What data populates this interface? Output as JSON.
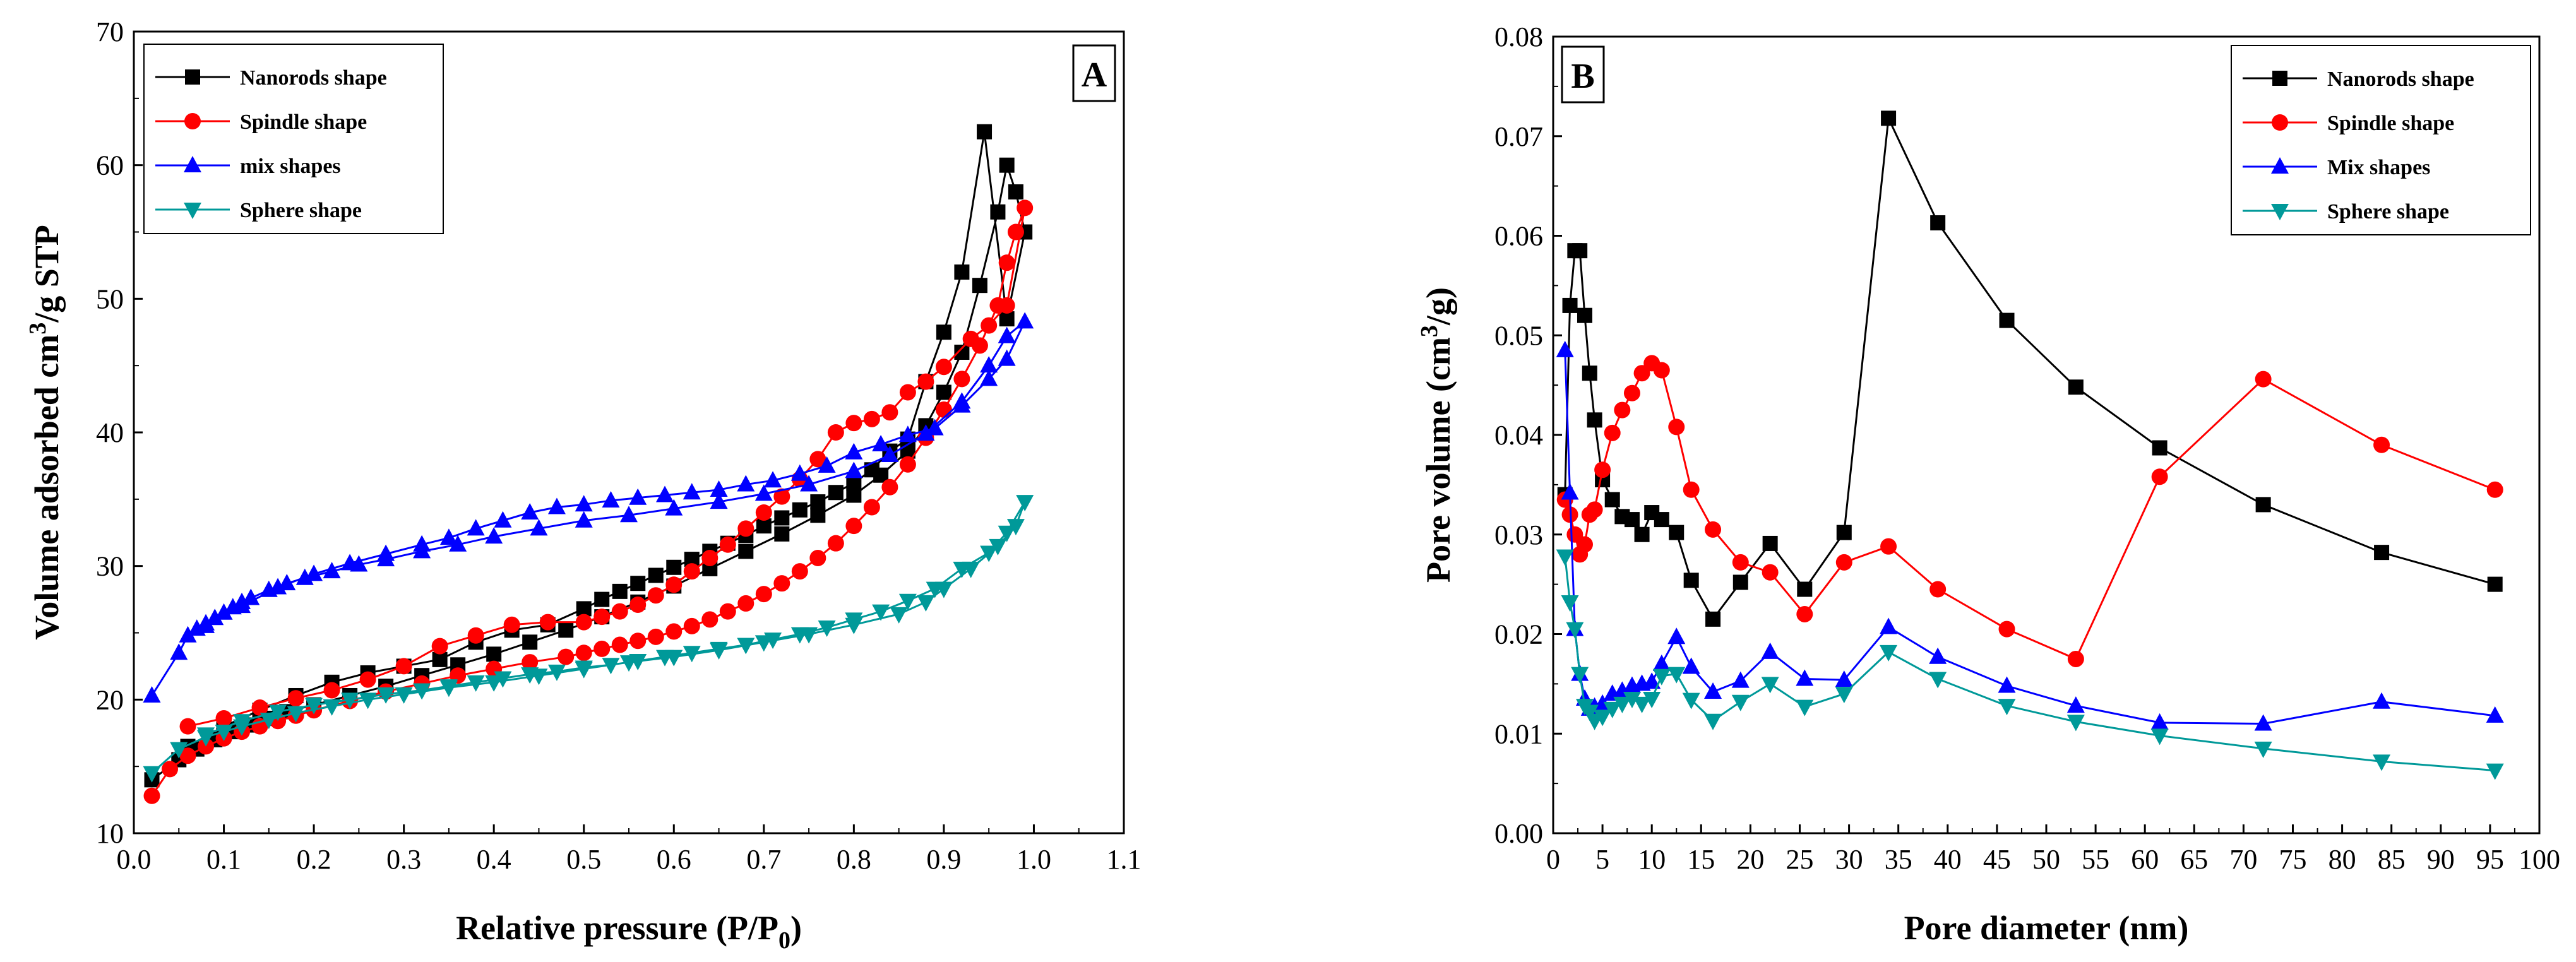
{
  "chart_data": [
    {
      "type": "line",
      "panel_label": "A",
      "title": "",
      "xlabel": "Relative pressure (P/P",
      "xlabel_sub": "0",
      "xlabel_end": ")",
      "ylabel": "Volume adsorbed cm",
      "ylabel_sup": "3",
      "ylabel_end": "/g STP",
      "xlim": [
        0.0,
        1.1
      ],
      "ylim": [
        10,
        70
      ],
      "xticks": [
        "0.0",
        "0.1",
        "0.2",
        "0.3",
        "0.4",
        "0.5",
        "0.6",
        "0.7",
        "0.8",
        "0.9",
        "1.0",
        "1.1"
      ],
      "yticks": [
        "10",
        "20",
        "30",
        "40",
        "50",
        "60",
        "70"
      ],
      "legend_position": "top-left",
      "series": [
        {
          "name": "Nanorods shape",
          "color": "#000000",
          "marker": "square",
          "x": [
            0.02,
            0.05,
            0.07,
            0.09,
            0.11,
            0.13,
            0.15,
            0.17,
            0.2,
            0.24,
            0.28,
            0.32,
            0.36,
            0.4,
            0.44,
            0.48,
            0.52,
            0.56,
            0.6,
            0.64,
            0.68,
            0.72,
            0.76,
            0.8,
            0.83,
            0.86,
            0.88,
            0.9,
            0.92,
            0.94,
            0.96,
            0.97,
            0.98,
            0.99,
            0.97,
            0.945,
            0.92,
            0.9,
            0.88,
            0.86,
            0.84,
            0.82,
            0.8,
            0.78,
            0.76,
            0.74,
            0.72,
            0.7,
            0.68,
            0.66,
            0.64,
            0.62,
            0.6,
            0.58,
            0.56,
            0.54,
            0.52,
            0.5,
            0.46,
            0.42,
            0.38,
            0.34,
            0.3,
            0.26,
            0.22,
            0.18,
            0.14,
            0.1,
            0.06
          ],
          "y": [
            14,
            15.5,
            16.3,
            17,
            17.6,
            18.1,
            18.6,
            19.1,
            19.6,
            20.3,
            21,
            21.8,
            22.6,
            23.4,
            24.3,
            25.2,
            26.2,
            27.3,
            28.5,
            29.8,
            31.1,
            32.4,
            33.8,
            35.3,
            36.8,
            38.6,
            40.5,
            43,
            46,
            51,
            56.5,
            60,
            58,
            55,
            48.5,
            62.5,
            52,
            47.5,
            43.8,
            39.5,
            38.6,
            37.2,
            36.2,
            35.5,
            34.8,
            34.2,
            33.6,
            33,
            32.3,
            31.7,
            31.1,
            30.5,
            29.9,
            29.3,
            28.7,
            28.1,
            27.5,
            26.8,
            25.6,
            25.2,
            24.3,
            23,
            22.5,
            22,
            21.3,
            20.3,
            19.2,
            18,
            16.5
          ]
        },
        {
          "name": "Spindle shape",
          "color": "#ff0000",
          "marker": "circle",
          "x": [
            0.02,
            0.04,
            0.06,
            0.08,
            0.1,
            0.12,
            0.14,
            0.16,
            0.18,
            0.2,
            0.24,
            0.28,
            0.32,
            0.36,
            0.4,
            0.44,
            0.48,
            0.5,
            0.52,
            0.54,
            0.56,
            0.58,
            0.6,
            0.62,
            0.64,
            0.66,
            0.68,
            0.7,
            0.72,
            0.74,
            0.76,
            0.78,
            0.8,
            0.82,
            0.84,
            0.86,
            0.88,
            0.9,
            0.92,
            0.94,
            0.96,
            0.97,
            0.98,
            0.99,
            0.97,
            0.95,
            0.93,
            0.9,
            0.88,
            0.86,
            0.84,
            0.82,
            0.8,
            0.78,
            0.76,
            0.74,
            0.72,
            0.7,
            0.68,
            0.66,
            0.64,
            0.62,
            0.6,
            0.58,
            0.56,
            0.54,
            0.52,
            0.5,
            0.46,
            0.42,
            0.38,
            0.34,
            0.3,
            0.26,
            0.22,
            0.18,
            0.14,
            0.1,
            0.06
          ],
          "y": [
            12.8,
            14.8,
            15.8,
            16.5,
            17.1,
            17.6,
            18,
            18.4,
            18.8,
            19.2,
            19.9,
            20.6,
            21.2,
            21.8,
            22.3,
            22.8,
            23.2,
            23.5,
            23.8,
            24.1,
            24.4,
            24.7,
            25.1,
            25.5,
            26,
            26.6,
            27.2,
            27.9,
            28.7,
            29.6,
            30.6,
            31.7,
            33,
            34.4,
            35.9,
            37.6,
            39.6,
            41.7,
            44,
            46.5,
            49.5,
            52.7,
            55,
            56.8,
            49.5,
            48,
            47,
            44.9,
            43.8,
            43,
            41.5,
            41,
            40.7,
            40,
            38,
            36.5,
            35.2,
            34,
            32.8,
            31.6,
            30.6,
            29.6,
            28.6,
            27.8,
            27.1,
            26.6,
            26.2,
            25.8,
            25.8,
            25.6,
            24.8,
            24,
            22.5,
            21.5,
            20.7,
            20.1,
            19.4,
            18.6,
            18
          ]
        },
        {
          "name": "mix shapes",
          "color": "#0000ff",
          "marker": "triangle-up",
          "x": [
            0.02,
            0.05,
            0.06,
            0.07,
            0.08,
            0.09,
            0.1,
            0.11,
            0.12,
            0.13,
            0.15,
            0.17,
            0.19,
            0.22,
            0.25,
            0.28,
            0.32,
            0.36,
            0.4,
            0.45,
            0.5,
            0.55,
            0.6,
            0.65,
            0.7,
            0.75,
            0.8,
            0.84,
            0.88,
            0.92,
            0.95,
            0.97,
            0.99,
            0.97,
            0.95,
            0.92,
            0.89,
            0.86,
            0.83,
            0.8,
            0.77,
            0.74,
            0.71,
            0.68,
            0.65,
            0.62,
            0.59,
            0.56,
            0.53,
            0.5,
            0.47,
            0.44,
            0.41,
            0.38,
            0.35,
            0.32,
            0.28,
            0.24,
            0.2,
            0.16,
            0.12,
            0.08
          ],
          "y": [
            20.3,
            23.5,
            24.8,
            25.3,
            25.7,
            26.1,
            26.5,
            26.9,
            27.3,
            27.6,
            28.2,
            28.7,
            29.1,
            29.6,
            30.1,
            30.5,
            31.1,
            31.6,
            32.2,
            32.8,
            33.4,
            33.8,
            34.3,
            34.8,
            35.4,
            36.1,
            37.1,
            38.3,
            39.9,
            42.3,
            45,
            47.2,
            48.3,
            45.5,
            44,
            42,
            40.3,
            39.8,
            39.1,
            38.5,
            37.5,
            36.9,
            36.4,
            36.1,
            35.7,
            35.5,
            35.3,
            35.1,
            34.9,
            34.6,
            34.4,
            34,
            33.4,
            32.8,
            32.1,
            31.6,
            30.9,
            30.2,
            29.4,
            28.4,
            27,
            25.5
          ]
        },
        {
          "name": "Sphere shape",
          "color": "#009999",
          "marker": "triangle-down",
          "x": [
            0.02,
            0.05,
            0.08,
            0.1,
            0.12,
            0.15,
            0.18,
            0.22,
            0.26,
            0.3,
            0.35,
            0.4,
            0.45,
            0.5,
            0.55,
            0.6,
            0.65,
            0.7,
            0.75,
            0.8,
            0.85,
            0.88,
            0.9,
            0.93,
            0.96,
            0.98,
            0.99,
            0.97,
            0.95,
            0.92,
            0.89,
            0.86,
            0.83,
            0.8,
            0.77,
            0.74,
            0.71,
            0.68,
            0.65,
            0.62,
            0.59,
            0.56,
            0.53,
            0.5,
            0.47,
            0.44,
            0.41,
            0.38,
            0.35,
            0.32,
            0.28,
            0.24,
            0.2,
            0.16,
            0.12,
            0.08
          ],
          "y": [
            14.5,
            16.3,
            17.2,
            17.6,
            18,
            18.5,
            19,
            19.5,
            20,
            20.4,
            20.9,
            21.3,
            21.8,
            22.3,
            22.8,
            23.2,
            23.7,
            24.3,
            24.9,
            25.6,
            26.4,
            27.3,
            28.3,
            29.8,
            31.5,
            33,
            34.8,
            32.5,
            31,
            29.8,
            28.3,
            27.4,
            26.6,
            26,
            25.4,
            24.9,
            24.5,
            24.1,
            23.8,
            23.5,
            23.2,
            22.9,
            22.6,
            22.4,
            22.1,
            21.9,
            21.6,
            21.3,
            21,
            20.7,
            20.4,
            20,
            19.6,
            19.1,
            18.4,
            17.4
          ]
        }
      ]
    },
    {
      "type": "line",
      "panel_label": "B",
      "title": "",
      "xlabel": "Pore diameter (nm)",
      "ylabel": "Pore volume (cm",
      "ylabel_sup": "3",
      "ylabel_end": "/g)",
      "xlim": [
        0,
        100
      ],
      "ylim": [
        0.0,
        0.08
      ],
      "xticks": [
        "0",
        "5",
        "10",
        "15",
        "20",
        "25",
        "30",
        "35",
        "40",
        "45",
        "50",
        "55",
        "60",
        "65",
        "70",
        "75",
        "80",
        "85",
        "90",
        "95",
        "100"
      ],
      "yticks": [
        "0.00",
        "0.01",
        "0.02",
        "0.03",
        "0.04",
        "0.05",
        "0.06",
        "0.07",
        "0.08"
      ],
      "legend_position": "top-right",
      "series": [
        {
          "name": "Nanorods shape",
          "color": "#000000",
          "marker": "square",
          "x": [
            1.2,
            1.7,
            2.2,
            2.7,
            3.2,
            3.7,
            4.2,
            5,
            6,
            7,
            8,
            9,
            10,
            11,
            12.5,
            14,
            16.2,
            19,
            22,
            25.5,
            29.5,
            34,
            39,
            46,
            53,
            61.5,
            72,
            84,
            95.5
          ],
          "y": [
            0.034,
            0.053,
            0.0585,
            0.0585,
            0.052,
            0.0462,
            0.0415,
            0.0355,
            0.0335,
            0.0318,
            0.0315,
            0.03,
            0.0322,
            0.0315,
            0.0302,
            0.0254,
            0.0215,
            0.0252,
            0.0291,
            0.0245,
            0.0302,
            0.0718,
            0.0613,
            0.0515,
            0.0448,
            0.0387,
            0.033,
            0.0282,
            0.025
          ]
        },
        {
          "name": "Spindle shape",
          "color": "#ff0000",
          "marker": "circle",
          "x": [
            1.2,
            1.7,
            2.2,
            2.7,
            3.2,
            3.7,
            4.2,
            5,
            6,
            7,
            8,
            9,
            10,
            11,
            12.5,
            14,
            16.2,
            19,
            22,
            25.5,
            29.5,
            34,
            39,
            46,
            53,
            61.5,
            72,
            84,
            95.5
          ],
          "y": [
            0.0335,
            0.032,
            0.03,
            0.028,
            0.029,
            0.032,
            0.0325,
            0.0365,
            0.0402,
            0.0425,
            0.0442,
            0.0462,
            0.0472,
            0.0465,
            0.0408,
            0.0345,
            0.0305,
            0.0272,
            0.0262,
            0.022,
            0.0272,
            0.0288,
            0.0245,
            0.0205,
            0.0175,
            0.0358,
            0.0456,
            0.039,
            0.0345
          ]
        },
        {
          "name": "Mix shapes",
          "color": "#0000ff",
          "marker": "triangle-up",
          "x": [
            1.2,
            1.7,
            2.2,
            2.7,
            3.2,
            3.7,
            4.2,
            5,
            6,
            7,
            8,
            9,
            10,
            11,
            12.5,
            14,
            16.2,
            19,
            22,
            25.5,
            29.5,
            34,
            39,
            46,
            53,
            61.5,
            72,
            84,
            95.5
          ],
          "y": [
            0.0485,
            0.0342,
            0.0205,
            0.016,
            0.0135,
            0.0125,
            0.0127,
            0.013,
            0.014,
            0.0143,
            0.0148,
            0.015,
            0.0152,
            0.017,
            0.0197,
            0.0167,
            0.0142,
            0.0153,
            0.0182,
            0.0155,
            0.0154,
            0.0207,
            0.0177,
            0.0148,
            0.0128,
            0.0111,
            0.011,
            0.0132,
            0.0118
          ]
        },
        {
          "name": "Sphere shape",
          "color": "#009999",
          "marker": "triangle-down",
          "x": [
            1.2,
            1.7,
            2.2,
            2.7,
            3.2,
            3.7,
            4.2,
            5,
            6,
            7,
            8,
            9,
            10,
            11,
            12.5,
            14,
            16.2,
            19,
            22,
            25.5,
            29.5,
            34,
            39,
            46,
            53,
            61.5,
            72,
            84,
            95.5
          ],
          "y": [
            0.0278,
            0.0232,
            0.0205,
            0.016,
            0.0128,
            0.0122,
            0.0113,
            0.0117,
            0.0125,
            0.013,
            0.0135,
            0.013,
            0.0135,
            0.0158,
            0.016,
            0.0134,
            0.0113,
            0.0132,
            0.015,
            0.0127,
            0.014,
            0.0182,
            0.0155,
            0.0128,
            0.0112,
            0.0098,
            0.0085,
            0.0072,
            0.0063
          ]
        }
      ]
    }
  ]
}
